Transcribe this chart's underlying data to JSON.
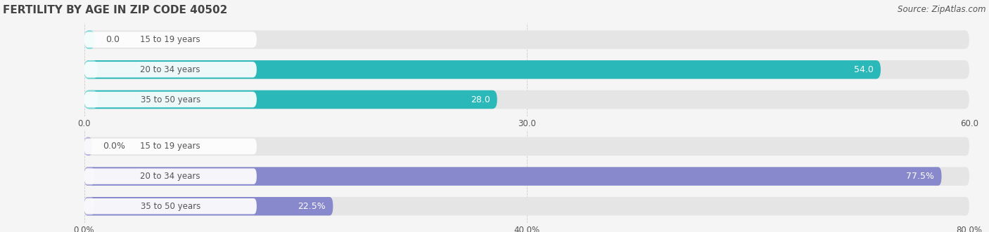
{
  "title": "FERTILITY BY AGE IN ZIP CODE 40502",
  "source": "Source: ZipAtlas.com",
  "top_chart": {
    "categories": [
      "15 to 19 years",
      "20 to 34 years",
      "35 to 50 years"
    ],
    "values": [
      0.0,
      54.0,
      28.0
    ],
    "xlim": [
      0,
      60
    ],
    "xticks": [
      0.0,
      30.0,
      60.0
    ],
    "xtick_labels": [
      "0.0",
      "30.0",
      "60.0"
    ],
    "bar_color": "#2ab8b8",
    "bar_light_color": "#7dd8d8",
    "label_suffix": "",
    "value_labels": [
      "0.0",
      "54.0",
      "28.0"
    ]
  },
  "bottom_chart": {
    "categories": [
      "15 to 19 years",
      "20 to 34 years",
      "35 to 50 years"
    ],
    "values": [
      0.0,
      77.5,
      22.5
    ],
    "xlim": [
      0,
      80
    ],
    "xticks": [
      0.0,
      40.0,
      80.0
    ],
    "xtick_labels": [
      "0.0%",
      "40.0%",
      "80.0%"
    ],
    "bar_color": "#8888cc",
    "bar_light_color": "#b0b0dd",
    "label_suffix": "%",
    "value_labels": [
      "0.0%",
      "77.5%",
      "22.5%"
    ]
  },
  "bar_height": 0.62,
  "fig_bg_color": "#f5f5f5",
  "bar_bg_color": "#e5e5e5",
  "pill_bg_color": "#ffffff",
  "text_color": "#555555",
  "title_color": "#444444",
  "label_on_bar_color": "#ffffff",
  "label_off_bar_color": "#555555",
  "label_fontsize": 9,
  "category_fontsize": 8.5,
  "title_fontsize": 11,
  "source_fontsize": 8.5,
  "tick_fontsize": 8.5
}
